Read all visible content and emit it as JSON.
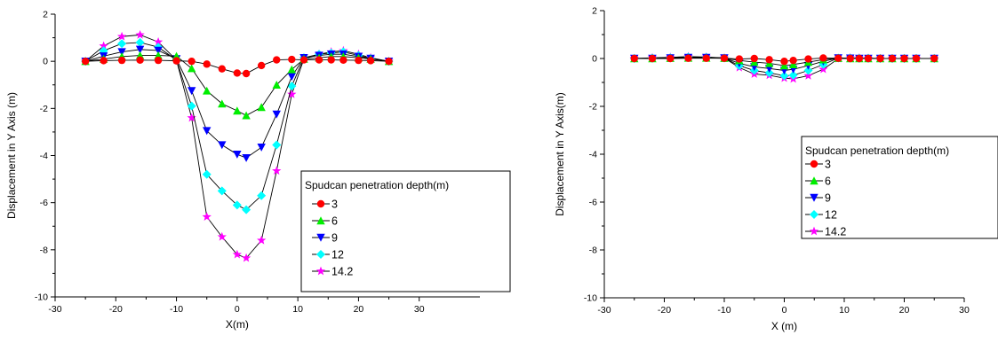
{
  "chart_data": [
    {
      "type": "line",
      "xlabel": "X(m)",
      "ylabel": "Displacement in Y Axis (m)",
      "xlim": [
        -30,
        40
      ],
      "ylim": [
        -10,
        2
      ],
      "xticks": [
        "-30",
        "-20",
        "-10",
        "0",
        "10",
        "20",
        "30"
      ],
      "yticks": [
        "-10",
        "-8",
        "-6",
        "-4",
        "-2",
        "0",
        "2"
      ],
      "legend_title": "Spudcan penetration depth(m)",
      "legend_position": "bottom-right",
      "x": [
        -25,
        -22,
        -19,
        -16,
        -13,
        -10,
        -7.5,
        -5,
        -2.5,
        0,
        1.5,
        4,
        6.5,
        9,
        11,
        13.5,
        15.5,
        17.5,
        20,
        22,
        25
      ],
      "series": [
        {
          "name": "3",
          "color": "#ff0000",
          "marker": "circle",
          "values": [
            0,
            0.03,
            0.04,
            0.05,
            0.04,
            0.02,
            0,
            -0.12,
            -0.32,
            -0.5,
            -0.52,
            -0.18,
            0.06,
            0.08,
            0.06,
            0.06,
            0.06,
            0.05,
            0.04,
            0.03,
            0
          ]
        },
        {
          "name": "6",
          "color": "#00ee00",
          "marker": "triangle-up",
          "values": [
            0,
            0.1,
            0.2,
            0.25,
            0.25,
            0.22,
            -0.3,
            -1.25,
            -1.8,
            -2.1,
            -2.3,
            -1.95,
            -1.0,
            -0.35,
            0.1,
            0.15,
            0.2,
            0.2,
            0.15,
            0.1,
            0
          ]
        },
        {
          "name": "9",
          "color": "#0000ff",
          "marker": "triangle-down",
          "values": [
            0,
            0.22,
            0.4,
            0.5,
            0.46,
            0.1,
            -1.25,
            -2.95,
            -3.55,
            -3.95,
            -4.1,
            -3.65,
            -2.25,
            -0.65,
            0.15,
            0.25,
            0.3,
            0.3,
            0.2,
            0.12,
            0
          ]
        },
        {
          "name": "12",
          "color": "#00ffff",
          "marker": "diamond",
          "values": [
            0,
            0.45,
            0.75,
            0.8,
            0.6,
            0.05,
            -1.9,
            -4.8,
            -5.5,
            -6.1,
            -6.3,
            -5.7,
            -3.55,
            -1.05,
            0.15,
            0.3,
            0.35,
            0.4,
            0.25,
            0.12,
            0
          ]
        },
        {
          "name": "14.2",
          "color": "#ff00ff",
          "marker": "star",
          "values": [
            0,
            0.65,
            1.05,
            1.12,
            0.82,
            0.05,
            -2.4,
            -6.6,
            -7.45,
            -8.2,
            -8.35,
            -7.6,
            -4.65,
            -1.4,
            0.1,
            0.3,
            0.4,
            0.45,
            0.3,
            0.15,
            0
          ]
        }
      ]
    },
    {
      "type": "line",
      "xlabel": "X (m)",
      "ylabel": "Displacement in Y Axis(m)",
      "xlim": [
        -30,
        30
      ],
      "ylim": [
        -10,
        2
      ],
      "xticks": [
        "-30",
        "-20",
        "-10",
        "0",
        "10",
        "20",
        "30"
      ],
      "yticks": [
        "-10",
        "-8",
        "-6",
        "-4",
        "-2",
        "0",
        "2"
      ],
      "legend_title": "Spudcan penetration depth(m)",
      "legend_position": "right",
      "x": [
        -25,
        -22,
        -19,
        -16,
        -13,
        -10,
        -7.5,
        -5,
        -2.5,
        0,
        1.5,
        4,
        6.5,
        9,
        11,
        12.5,
        14,
        16,
        18,
        20,
        22,
        25
      ],
      "series": [
        {
          "name": "3",
          "color": "#ff0000",
          "marker": "circle",
          "values": [
            0,
            0,
            0,
            0.01,
            0.01,
            0.01,
            -0.02,
            0,
            -0.05,
            -0.12,
            -0.08,
            -0.02,
            0.02,
            0.01,
            0,
            0,
            0,
            0,
            0,
            0,
            0,
            0
          ]
        },
        {
          "name": "6",
          "color": "#00ee00",
          "marker": "triangle-up",
          "values": [
            0,
            0,
            0.01,
            0.02,
            0.02,
            0.01,
            -0.08,
            -0.15,
            -0.2,
            -0.3,
            -0.25,
            -0.15,
            -0.05,
            0.01,
            0,
            0,
            0,
            0,
            0,
            0,
            0,
            0
          ]
        },
        {
          "name": "9",
          "color": "#0000ff",
          "marker": "triangle-down",
          "values": [
            0,
            0,
            0.02,
            0.04,
            0.04,
            0.02,
            -0.2,
            -0.35,
            -0.42,
            -0.5,
            -0.45,
            -0.3,
            -0.12,
            0.02,
            0.01,
            0,
            0,
            0,
            0,
            0,
            0,
            0
          ]
        },
        {
          "name": "12",
          "color": "#00ffff",
          "marker": "diamond",
          "values": [
            0,
            0.02,
            0.03,
            0.06,
            0.05,
            0.02,
            -0.3,
            -0.5,
            -0.6,
            -0.72,
            -0.7,
            -0.5,
            -0.25,
            0.02,
            0.02,
            0.01,
            0.01,
            0,
            0,
            0,
            0,
            0
          ]
        },
        {
          "name": "14.2",
          "color": "#ff00ff",
          "marker": "star",
          "values": [
            0,
            0.03,
            0.05,
            0.08,
            0.06,
            0.02,
            -0.38,
            -0.65,
            -0.7,
            -0.82,
            -0.85,
            -0.72,
            -0.45,
            -0.01,
            0.03,
            0.02,
            0.01,
            0,
            0,
            0,
            0,
            0
          ]
        }
      ]
    }
  ]
}
